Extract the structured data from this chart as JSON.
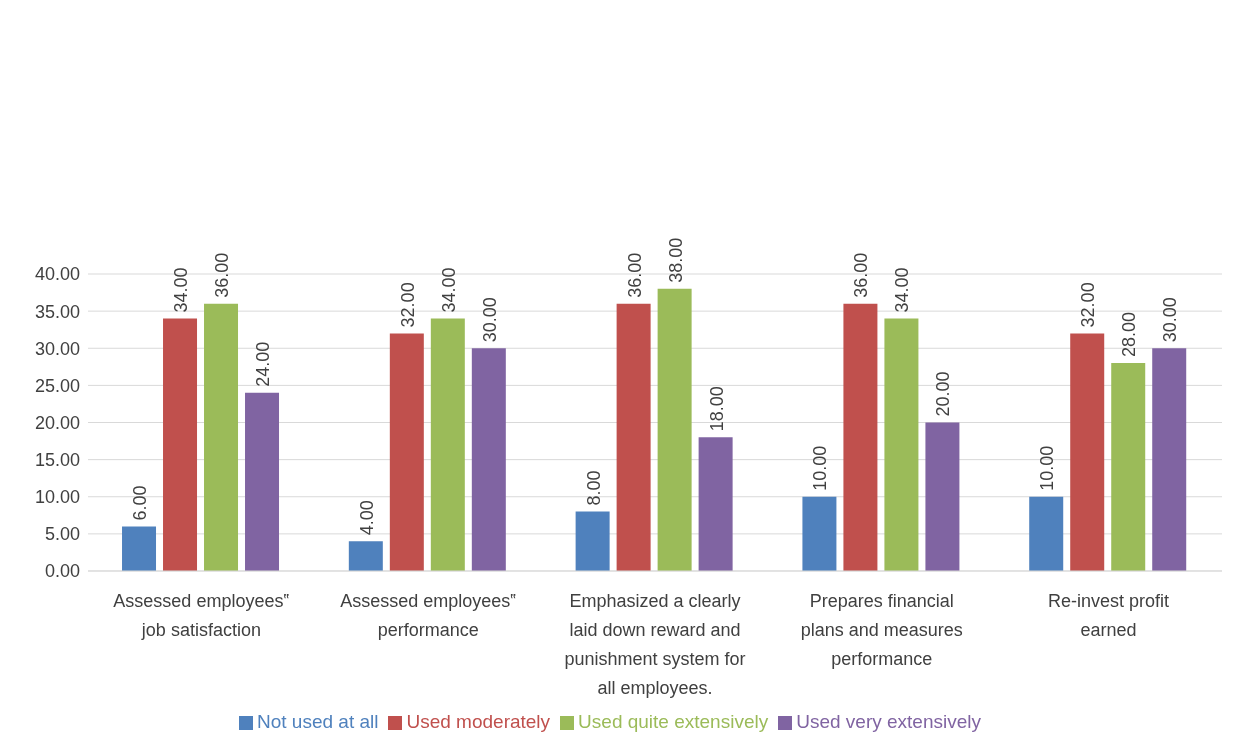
{
  "chart_data": {
    "type": "bar",
    "categories": [
      "Assessed employees‟ job satisfaction",
      "Assessed employees‟ performance",
      "Emphasized a clearly laid down reward and punishment system for all employees.",
      "Prepares financial plans and measures performance",
      "Re-invest profit earned"
    ],
    "series": [
      {
        "name": "Not used at all",
        "color": "#4f81bd",
        "values": [
          6,
          4,
          8,
          10,
          10
        ],
        "value_labels": [
          "6.00",
          "4.00",
          "8.00",
          "10.00",
          "10.00"
        ]
      },
      {
        "name": "Used moderately",
        "color": "#c0504d",
        "values": [
          34,
          32,
          36,
          36,
          32
        ],
        "value_labels": [
          "34.00",
          "32.00",
          "36.00",
          "36.00",
          "32.00"
        ]
      },
      {
        "name": "Used quite extensively",
        "color": "#9bbb59",
        "values": [
          36,
          34,
          38,
          34,
          28
        ],
        "value_labels": [
          "36.00",
          "34.00",
          "38.00",
          "34.00",
          "28.00"
        ]
      },
      {
        "name": "Used very extensively",
        "color": "#8064a2",
        "values": [
          24,
          30,
          18,
          20,
          30
        ],
        "value_labels": [
          "24.00",
          "30.00",
          "18.00",
          "20.00",
          "30.00"
        ]
      }
    ],
    "ylim": [
      0,
      40
    ],
    "yticks": [
      {
        "value": 0,
        "label": "0.00"
      },
      {
        "value": 5,
        "label": "5.00"
      },
      {
        "value": 10,
        "label": "10.00"
      },
      {
        "value": 15,
        "label": "15.00"
      },
      {
        "value": 20,
        "label": "20.00"
      },
      {
        "value": 25,
        "label": "25.00"
      },
      {
        "value": 30,
        "label": "30.00"
      },
      {
        "value": 35,
        "label": "35.00"
      },
      {
        "value": 40,
        "label": "40.00"
      }
    ],
    "grid": "y",
    "legend": "bottom"
  }
}
